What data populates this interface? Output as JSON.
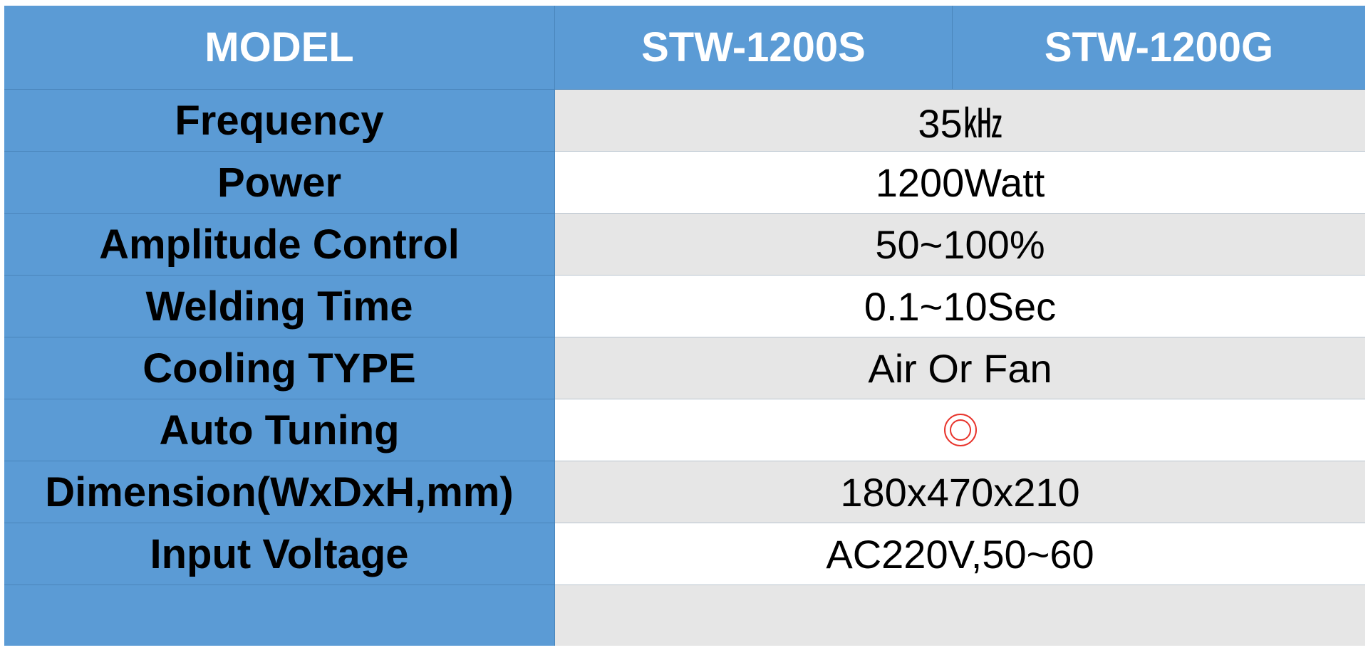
{
  "header": {
    "model_label": "MODEL",
    "model_a": "STW-1200S",
    "model_b": "STW-1200G"
  },
  "rows": [
    {
      "label": "Frequency",
      "value": "35㎑"
    },
    {
      "label": "Power",
      "value": "1200Watt"
    },
    {
      "label": "Amplitude Control",
      "value": "50~100%"
    },
    {
      "label": "Welding Time",
      "value": "0.1~10Sec"
    },
    {
      "label": "Cooling TYPE",
      "value": "Air Or Fan"
    },
    {
      "label": "Auto Tuning",
      "value_icon": "double-circle-icon"
    },
    {
      "label": "Dimension(WxDxH,mm)",
      "value": "180x470x210"
    },
    {
      "label": "Input Voltage",
      "value": "AC220V,50~60"
    },
    {
      "label": "",
      "value": ""
    }
  ],
  "colors": {
    "header_blue": "#5b9bd5",
    "shaded_row": "#e6e6e6",
    "icon_red": "#e8342c"
  }
}
